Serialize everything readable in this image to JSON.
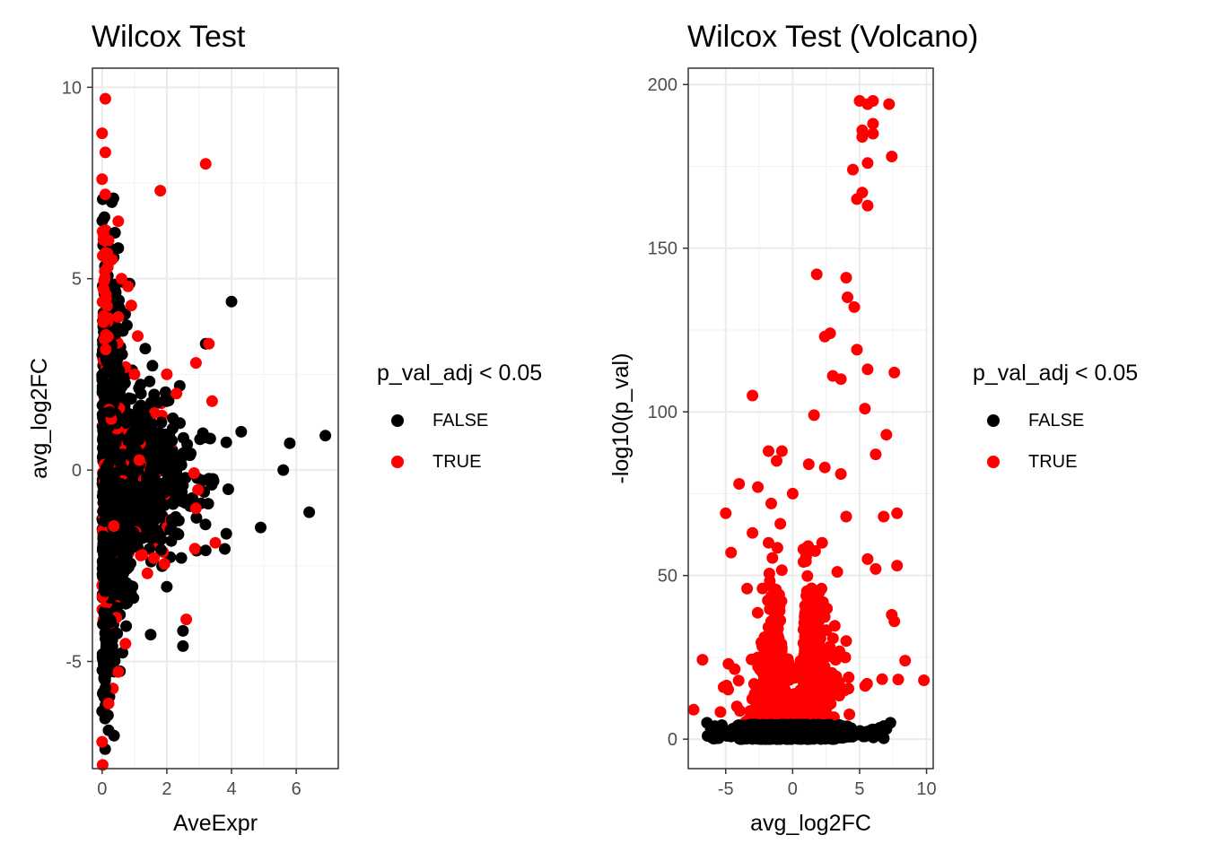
{
  "chart_data": [
    {
      "type": "scatter",
      "title": "Wilcox Test",
      "xlabel": "AveExpr",
      "ylabel": "avg_log2FC",
      "xlim": [
        -0.3,
        7.3
      ],
      "ylim": [
        -7.8,
        10.5
      ],
      "xticks": [
        0,
        2,
        4,
        6
      ],
      "yticks": [
        -5,
        0,
        5,
        10
      ],
      "grid": true,
      "legend": {
        "title": "p_val_adj < 0.05",
        "position": "right",
        "entries": [
          {
            "label": "FALSE",
            "color": "#000000"
          },
          {
            "label": "TRUE",
            "color": "#ff0000"
          }
        ]
      },
      "notable_points": {
        "TRUE": [
          [
            0.1,
            9.7
          ],
          [
            0.0,
            8.8
          ],
          [
            0.1,
            8.3
          ],
          [
            3.2,
            8.0
          ],
          [
            1.8,
            7.3
          ],
          [
            0.0,
            7.6
          ],
          [
            0.1,
            7.2
          ],
          [
            0.5,
            6.5
          ],
          [
            0.2,
            6.0
          ],
          [
            0.3,
            5.5
          ],
          [
            0.6,
            5.0
          ],
          [
            0.8,
            4.8
          ],
          [
            0.9,
            4.3
          ],
          [
            0.5,
            4.0
          ],
          [
            1.1,
            3.5
          ],
          [
            3.3,
            3.3
          ],
          [
            1.0,
            2.5
          ],
          [
            2.0,
            2.5
          ],
          [
            2.9,
            2.8
          ],
          [
            3.4,
            1.8
          ],
          [
            2.3,
            2.0
          ],
          [
            2.9,
            -1.0
          ],
          [
            3.5,
            -1.9
          ],
          [
            2.6,
            -3.9
          ],
          [
            0.0,
            -7.1
          ],
          [
            1.4,
            -2.7
          ],
          [
            1.6,
            -2.3
          ],
          [
            0.2,
            -6.1
          ]
        ],
        "FALSE": [
          [
            0.3,
            7.0
          ],
          [
            0.5,
            5.8
          ],
          [
            0.4,
            6.2
          ],
          [
            4.0,
            4.4
          ],
          [
            3.2,
            3.3
          ],
          [
            1.2,
            2.0
          ],
          [
            2.0,
            1.8
          ],
          [
            2.4,
            2.2
          ],
          [
            4.3,
            1.0
          ],
          [
            5.8,
            0.7
          ],
          [
            6.9,
            0.9
          ],
          [
            5.6,
            0.0
          ],
          [
            6.4,
            -1.1
          ],
          [
            4.9,
            -1.5
          ],
          [
            3.9,
            -0.5
          ],
          [
            3.2,
            -2.1
          ],
          [
            2.5,
            -4.6
          ],
          [
            2.5,
            -4.2
          ],
          [
            1.5,
            -4.3
          ],
          [
            0.2,
            -6.8
          ],
          [
            0.1,
            -5.7
          ],
          [
            0.0,
            -6.3
          ]
        ]
      }
    },
    {
      "type": "scatter",
      "title": "Wilcox Test (Volcano)",
      "xlabel": "avg_log2FC",
      "ylabel": "-log10(p_val)",
      "xlim": [
        -7.8,
        10.5
      ],
      "ylim": [
        -9,
        205
      ],
      "xticks": [
        -5,
        0,
        5,
        10
      ],
      "yticks": [
        0,
        50,
        100,
        150,
        200
      ],
      "grid": true,
      "legend": {
        "title": "p_val_adj < 0.05",
        "position": "right",
        "entries": [
          {
            "label": "FALSE",
            "color": "#000000"
          },
          {
            "label": "TRUE",
            "color": "#ff0000"
          }
        ]
      },
      "notable_points": {
        "TRUE": [
          [
            5.0,
            195
          ],
          [
            5.6,
            194
          ],
          [
            6.0,
            195
          ],
          [
            7.2,
            194
          ],
          [
            6.0,
            188
          ],
          [
            7.4,
            178
          ],
          [
            5.2,
            184
          ],
          [
            5.2,
            186
          ],
          [
            4.5,
            174
          ],
          [
            5.6,
            176
          ],
          [
            6.0,
            185
          ],
          [
            5.2,
            167
          ],
          [
            5.6,
            163
          ],
          [
            4.8,
            165
          ],
          [
            1.8,
            142
          ],
          [
            4.0,
            141
          ],
          [
            4.1,
            135
          ],
          [
            4.6,
            132
          ],
          [
            2.8,
            124
          ],
          [
            2.4,
            123
          ],
          [
            3.0,
            111
          ],
          [
            3.6,
            110
          ],
          [
            5.6,
            113
          ],
          [
            7.6,
            112
          ],
          [
            -3.0,
            105
          ],
          [
            1.6,
            99
          ],
          [
            4.8,
            119
          ],
          [
            5.4,
            101
          ],
          [
            7.0,
            93
          ],
          [
            6.2,
            87
          ],
          [
            -1.8,
            88
          ],
          [
            -0.8,
            88
          ],
          [
            -1.2,
            85
          ],
          [
            1.2,
            84
          ],
          [
            2.4,
            83
          ],
          [
            3.6,
            81
          ],
          [
            -4.0,
            78
          ],
          [
            -2.6,
            77
          ],
          [
            0.0,
            75
          ],
          [
            -1.6,
            72
          ],
          [
            -5.0,
            69
          ],
          [
            4.0,
            68
          ],
          [
            6.8,
            68
          ],
          [
            7.8,
            69
          ],
          [
            -3.0,
            63
          ],
          [
            -1.8,
            60
          ],
          [
            -4.6,
            57
          ],
          [
            0.8,
            58
          ],
          [
            2.2,
            60
          ],
          [
            5.6,
            55
          ],
          [
            6.2,
            52
          ],
          [
            7.8,
            53
          ],
          [
            -3.4,
            46
          ],
          [
            7.4,
            38
          ],
          [
            7.6,
            36
          ],
          [
            8.4,
            24
          ],
          [
            9.8,
            18
          ],
          [
            -7.4,
            9
          ],
          [
            -4.8,
            23
          ],
          [
            -1.0,
            29
          ],
          [
            2.0,
            45
          ],
          [
            1.0,
            40
          ],
          [
            -2.0,
            30
          ],
          [
            4.0,
            30
          ]
        ],
        "FALSE": [
          [
            -6.4,
            5
          ],
          [
            -5.8,
            4
          ],
          [
            -4.5,
            3
          ],
          [
            -3.0,
            2
          ],
          [
            -2.0,
            1.5
          ],
          [
            -1.0,
            1
          ],
          [
            0.0,
            0.5
          ],
          [
            1.0,
            1
          ],
          [
            2.0,
            2
          ],
          [
            3.0,
            2.5
          ],
          [
            4.0,
            3
          ],
          [
            5.0,
            2
          ],
          [
            6.0,
            3
          ],
          [
            6.8,
            4
          ],
          [
            7.3,
            5
          ],
          [
            -6.0,
            1
          ]
        ]
      }
    }
  ]
}
